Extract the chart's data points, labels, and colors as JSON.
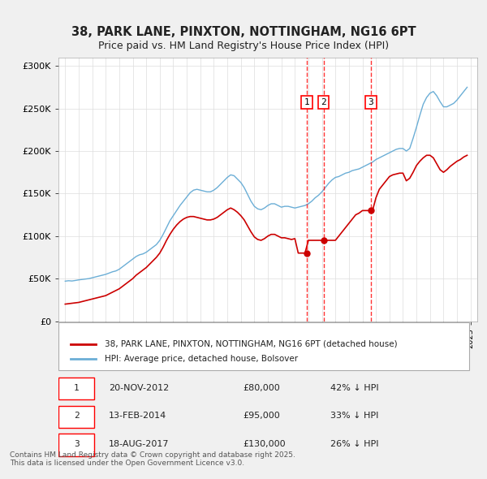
{
  "title": "38, PARK LANE, PINXTON, NOTTINGHAM, NG16 6PT",
  "subtitle": "Price paid vs. HM Land Registry's House Price Index (HPI)",
  "ylabel": "",
  "xlabel": "",
  "ylim": [
    0,
    310000
  ],
  "yticks": [
    0,
    50000,
    100000,
    150000,
    200000,
    250000,
    300000
  ],
  "ytick_labels": [
    "£0",
    "£50K",
    "£100K",
    "£150K",
    "£200K",
    "£250K",
    "£300K"
  ],
  "background_color": "#f0f0f0",
  "plot_background": "#ffffff",
  "hpi_color": "#6baed6",
  "price_color": "#cc0000",
  "sale_dates": [
    "2012-11-20",
    "2014-02-13",
    "2017-08-18"
  ],
  "sale_prices": [
    80000,
    95000,
    130000
  ],
  "sale_labels": [
    "1",
    "2",
    "3"
  ],
  "sale_pct": [
    "42%",
    "33%",
    "26%"
  ],
  "legend_line1": "38, PARK LANE, PINXTON, NOTTINGHAM, NG16 6PT (detached house)",
  "legend_line2": "HPI: Average price, detached house, Bolsover",
  "table_rows": [
    [
      "1",
      "20-NOV-2012",
      "£80,000",
      "42% ↓ HPI"
    ],
    [
      "2",
      "13-FEB-2014",
      "£95,000",
      "33% ↓ HPI"
    ],
    [
      "3",
      "18-AUG-2017",
      "£130,000",
      "26% ↓ HPI"
    ]
  ],
  "footer": "Contains HM Land Registry data © Crown copyright and database right 2025.\nThis data is licensed under the Open Government Licence v3.0.",
  "hpi_data": {
    "x": [
      1995.0,
      1995.25,
      1995.5,
      1995.75,
      1996.0,
      1996.25,
      1996.5,
      1996.75,
      1997.0,
      1997.25,
      1997.5,
      1997.75,
      1998.0,
      1998.25,
      1998.5,
      1998.75,
      1999.0,
      1999.25,
      1999.5,
      1999.75,
      2000.0,
      2000.25,
      2000.5,
      2000.75,
      2001.0,
      2001.25,
      2001.5,
      2001.75,
      2002.0,
      2002.25,
      2002.5,
      2002.75,
      2003.0,
      2003.25,
      2003.5,
      2003.75,
      2004.0,
      2004.25,
      2004.5,
      2004.75,
      2005.0,
      2005.25,
      2005.5,
      2005.75,
      2006.0,
      2006.25,
      2006.5,
      2006.75,
      2007.0,
      2007.25,
      2007.5,
      2007.75,
      2008.0,
      2008.25,
      2008.5,
      2008.75,
      2009.0,
      2009.25,
      2009.5,
      2009.75,
      2010.0,
      2010.25,
      2010.5,
      2010.75,
      2011.0,
      2011.25,
      2011.5,
      2011.75,
      2012.0,
      2012.25,
      2012.5,
      2012.75,
      2013.0,
      2013.25,
      2013.5,
      2013.75,
      2014.0,
      2014.25,
      2014.5,
      2014.75,
      2015.0,
      2015.25,
      2015.5,
      2015.75,
      2016.0,
      2016.25,
      2016.5,
      2016.75,
      2017.0,
      2017.25,
      2017.5,
      2017.75,
      2018.0,
      2018.25,
      2018.5,
      2018.75,
      2019.0,
      2019.25,
      2019.5,
      2019.75,
      2020.0,
      2020.25,
      2020.5,
      2020.75,
      2021.0,
      2021.25,
      2021.5,
      2021.75,
      2022.0,
      2022.25,
      2022.5,
      2022.75,
      2023.0,
      2023.25,
      2023.5,
      2023.75,
      2024.0,
      2024.25,
      2024.5,
      2024.75
    ],
    "y": [
      47000,
      47500,
      47200,
      47800,
      48500,
      49000,
      49500,
      50000,
      51000,
      52000,
      53000,
      54000,
      55000,
      56500,
      58000,
      59000,
      61000,
      64000,
      67000,
      70000,
      73000,
      76000,
      78000,
      79000,
      81000,
      84000,
      87000,
      90000,
      95000,
      102000,
      110000,
      118000,
      124000,
      130000,
      136000,
      141000,
      146000,
      151000,
      154000,
      155000,
      154000,
      153000,
      152000,
      152000,
      154000,
      157000,
      161000,
      165000,
      169000,
      172000,
      171000,
      167000,
      163000,
      157000,
      149000,
      141000,
      135000,
      132000,
      131000,
      133000,
      136000,
      138000,
      138000,
      136000,
      134000,
      135000,
      135000,
      134000,
      133000,
      134000,
      135000,
      136000,
      138000,
      141000,
      145000,
      148000,
      152000,
      157000,
      162000,
      166000,
      169000,
      170000,
      172000,
      174000,
      175000,
      177000,
      178000,
      179000,
      181000,
      183000,
      185000,
      187000,
      190000,
      192000,
      194000,
      196000,
      198000,
      200000,
      202000,
      203000,
      203000,
      200000,
      203000,
      215000,
      228000,
      242000,
      255000,
      263000,
      268000,
      270000,
      265000,
      258000,
      252000,
      252000,
      254000,
      256000,
      260000,
      265000,
      270000,
      275000
    ]
  },
  "price_data": {
    "x": [
      1995.0,
      1995.25,
      1995.5,
      1995.75,
      1996.0,
      1996.25,
      1996.5,
      1996.75,
      1997.0,
      1997.25,
      1997.5,
      1997.75,
      1998.0,
      1998.25,
      1998.5,
      1998.75,
      1999.0,
      1999.25,
      1999.5,
      1999.75,
      2000.0,
      2000.25,
      2000.5,
      2000.75,
      2001.0,
      2001.25,
      2001.5,
      2001.75,
      2002.0,
      2002.25,
      2002.5,
      2002.75,
      2003.0,
      2003.25,
      2003.5,
      2003.75,
      2004.0,
      2004.25,
      2004.5,
      2004.75,
      2005.0,
      2005.25,
      2005.5,
      2005.75,
      2006.0,
      2006.25,
      2006.5,
      2006.75,
      2007.0,
      2007.25,
      2007.5,
      2007.75,
      2008.0,
      2008.25,
      2008.5,
      2008.75,
      2009.0,
      2009.25,
      2009.5,
      2009.75,
      2010.0,
      2010.25,
      2010.5,
      2010.75,
      2011.0,
      2011.25,
      2011.5,
      2011.75,
      2012.0,
      2012.25,
      2012.5,
      2012.75,
      2013.0,
      2013.25,
      2013.5,
      2013.75,
      2014.0,
      2014.25,
      2014.5,
      2014.75,
      2015.0,
      2015.25,
      2015.5,
      2015.75,
      2016.0,
      2016.25,
      2016.5,
      2016.75,
      2017.0,
      2017.25,
      2017.5,
      2017.75,
      2018.0,
      2018.25,
      2018.5,
      2018.75,
      2019.0,
      2019.25,
      2019.5,
      2019.75,
      2020.0,
      2020.25,
      2020.5,
      2020.75,
      2021.0,
      2021.25,
      2021.5,
      2021.75,
      2022.0,
      2022.25,
      2022.5,
      2022.75,
      2023.0,
      2023.25,
      2023.5,
      2023.75,
      2024.0,
      2024.25,
      2024.5,
      2024.75
    ],
    "y": [
      20000,
      20500,
      21000,
      21500,
      22000,
      23000,
      24000,
      25000,
      26000,
      27000,
      28000,
      29000,
      30000,
      32000,
      34000,
      36000,
      38000,
      41000,
      44000,
      47000,
      50000,
      54000,
      57000,
      60000,
      63000,
      67000,
      71000,
      75000,
      80000,
      87000,
      95000,
      102000,
      108000,
      113000,
      117000,
      120000,
      122000,
      123000,
      123000,
      122000,
      121000,
      120000,
      119000,
      119000,
      120000,
      122000,
      125000,
      128000,
      131000,
      133000,
      131000,
      128000,
      124000,
      119000,
      112000,
      105000,
      99000,
      96000,
      95000,
      97000,
      100000,
      102000,
      102000,
      100000,
      98000,
      98000,
      97000,
      96000,
      97000,
      80000,
      80000,
      80000,
      95000,
      95000,
      95000,
      95000,
      95000,
      95000,
      95000,
      95000,
      95000,
      100000,
      105000,
      110000,
      115000,
      120000,
      125000,
      127000,
      130000,
      130000,
      130000,
      130000,
      145000,
      155000,
      160000,
      165000,
      170000,
      172000,
      173000,
      174000,
      174000,
      165000,
      168000,
      175000,
      183000,
      188000,
      192000,
      195000,
      195000,
      192000,
      185000,
      178000,
      175000,
      178000,
      182000,
      185000,
      188000,
      190000,
      193000,
      195000
    ]
  }
}
